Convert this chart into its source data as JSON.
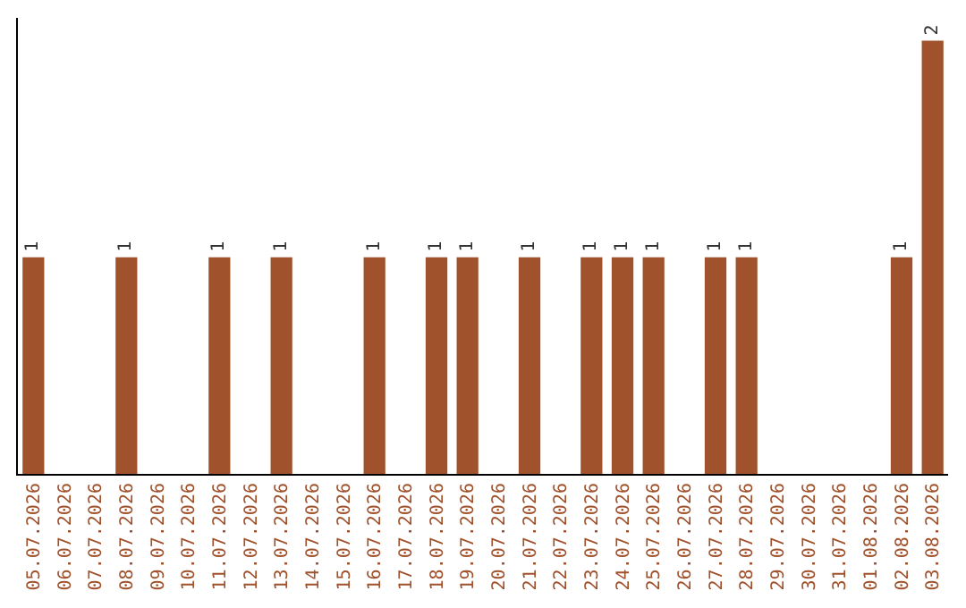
{
  "chart_data": {
    "type": "bar",
    "categories": [
      "05.07.2026",
      "06.07.2026",
      "07.07.2026",
      "08.07.2026",
      "09.07.2026",
      "10.07.2026",
      "11.07.2026",
      "12.07.2026",
      "13.07.2026",
      "14.07.2026",
      "15.07.2026",
      "16.07.2026",
      "17.07.2026",
      "18.07.2026",
      "19.07.2026",
      "20.07.2026",
      "21.07.2026",
      "22.07.2026",
      "23.07.2026",
      "24.07.2026",
      "25.07.2026",
      "26.07.2026",
      "27.07.2026",
      "28.07.2026",
      "29.07.2026",
      "30.07.2026",
      "31.07.2026",
      "01.08.2026",
      "02.08.2026",
      "03.08.2026"
    ],
    "values": [
      1,
      0,
      0,
      1,
      0,
      0,
      1,
      0,
      1,
      0,
      0,
      1,
      0,
      1,
      1,
      0,
      1,
      0,
      1,
      1,
      1,
      0,
      1,
      1,
      0,
      0,
      0,
      0,
      1,
      2
    ],
    "value_labels": [
      "1",
      null,
      null,
      "1",
      null,
      null,
      "1",
      null,
      "1",
      null,
      null,
      "1",
      null,
      "1",
      "1",
      null,
      "1",
      null,
      "1",
      "1",
      "1",
      null,
      "1",
      "1",
      null,
      null,
      null,
      null,
      "1",
      "2"
    ],
    "color": "#a0522d",
    "tick_labels": "x",
    "legend": false
  }
}
